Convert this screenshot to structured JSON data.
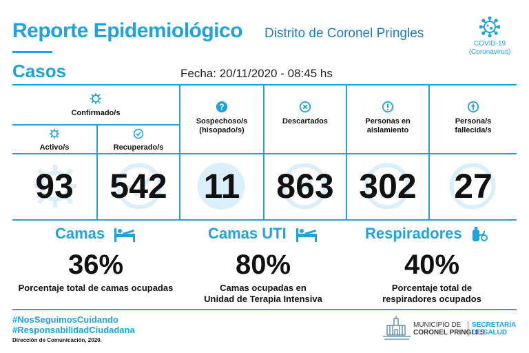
{
  "header": {
    "title": "Reporte Epidemiológico",
    "district": "Distrito de Coronel Pringles",
    "covid_line1": "COVID-19",
    "covid_line2": "(Coronavirus)",
    "section": "Casos",
    "date": "Fecha: 20/11/2020 - 08:45 hs"
  },
  "cases": {
    "confirmed_label": "Confirmado/s",
    "active": {
      "label": "Activo/s",
      "value": "93",
      "icon": "virus-icon"
    },
    "recovered": {
      "label": "Recuperado/s",
      "value": "542",
      "icon": "check-circle-icon"
    },
    "suspected": {
      "label_line1": "Sospechoso/s",
      "label_line2": "(hisopado/s)",
      "value": "11",
      "icon": "question-icon"
    },
    "discarded": {
      "label": "Descartados",
      "value": "863",
      "icon": "x-circle-icon"
    },
    "isolation": {
      "label_line1": "Personas en",
      "label_line2": "aislamiento",
      "value": "302",
      "icon": "exclamation-icon"
    },
    "deceased": {
      "label_line1": "Persona/s",
      "label_line2": "fallecida/s",
      "value": "27",
      "icon": "cross-icon"
    }
  },
  "resources": {
    "beds": {
      "title": "Camas",
      "percent": "36%",
      "desc_line1": "Porcentaje total de camas ocupadas",
      "desc_line2": "",
      "icon": "bed-icon"
    },
    "icu": {
      "title": "Camas UTI",
      "percent": "80%",
      "desc_line1": "Camas ocupadas en",
      "desc_line2": "Unidad de Terapia Intensiva",
      "icon": "bed-icon"
    },
    "respirators": {
      "title": "Respiradores",
      "percent": "40%",
      "desc_line1": "Porcentaje total de",
      "desc_line2": "respiradores ocupados",
      "icon": "respirator-icon"
    }
  },
  "footer": {
    "hashtag1": "#NosSeguimosCuidando",
    "hashtag2": "#ResponsabilidadCiudadana",
    "credit": "Dirección de Comunicación, 2020.",
    "muni_line1": "MUNICIPIO DE",
    "muni_line2": "CORONEL PRINGLES",
    "sec_line1": "SECRETARÍA",
    "sec_line2": "DE SALUD"
  },
  "colors": {
    "accent": "#1fa3dc",
    "text": "#111111"
  }
}
